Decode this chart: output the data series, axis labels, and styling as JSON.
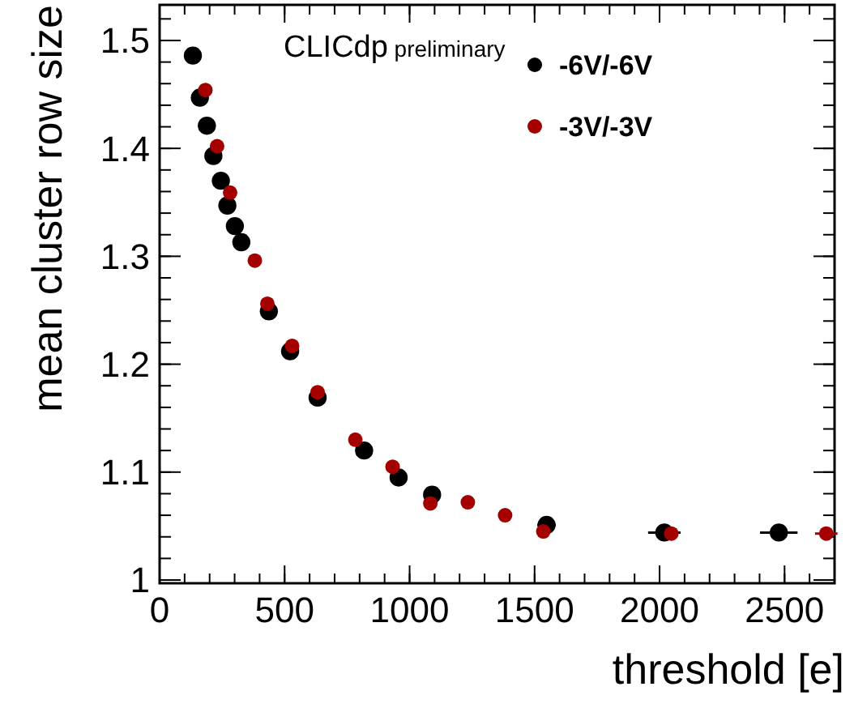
{
  "chart_data": {
    "type": "scatter",
    "xlabel": "threshold [e]",
    "ylabel": "mean cluster row size",
    "annotations": [
      "CLICdp preliminary"
    ],
    "xlim": [
      0,
      2700
    ],
    "xticks": [
      0,
      500,
      1000,
      1500,
      2000,
      2500
    ],
    "ylim": [
      0.997,
      1.533
    ],
    "yticks": [
      1,
      1.1,
      1.2,
      1.3,
      1.4,
      1.5
    ],
    "marker": "circle",
    "legend": "top right",
    "grid": false,
    "series": [
      {
        "name": "-6V/-6V",
        "color": "#000000",
        "x": [
          133,
          161,
          189,
          215,
          245,
          271,
          301,
          327,
          437,
          522,
          632,
          818,
          956,
          1090,
          1548,
          2019,
          2477
        ],
        "values": [
          1.486,
          1.447,
          1.421,
          1.393,
          1.37,
          1.347,
          1.328,
          1.313,
          1.249,
          1.212,
          1.169,
          1.12,
          1.095,
          1.079,
          1.051,
          1.044,
          1.044
        ],
        "xerrors": [
          null,
          null,
          null,
          null,
          null,
          null,
          null,
          null,
          null,
          null,
          null,
          null,
          null,
          32,
          37,
          65,
          75
        ]
      },
      {
        "name": "-3V/-3V",
        "color": "#a50000",
        "x": [
          183,
          230,
          282,
          381,
          431,
          530,
          632,
          783,
          932,
          1083,
          1233,
          1382,
          1535,
          2047,
          2667
        ],
        "values": [
          1.454,
          1.402,
          1.359,
          1.296,
          1.256,
          1.217,
          1.174,
          1.13,
          1.105,
          1.071,
          1.072,
          1.06,
          1.045,
          1.043,
          1.043
        ],
        "xerrors": [
          null,
          null,
          null,
          null,
          null,
          null,
          null,
          null,
          null,
          null,
          null,
          null,
          null,
          20,
          45
        ]
      }
    ]
  }
}
